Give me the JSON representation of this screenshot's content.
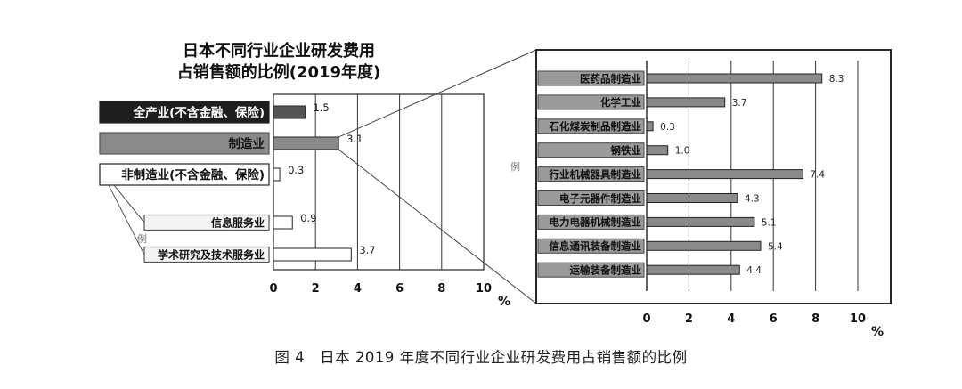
{
  "figure_caption": "图 4　日本 2019 年度不同行业企业研发费用占销售额的比例",
  "legend_mark_left": "例",
  "legend_mark_right": "例",
  "chart_data": [
    {
      "type": "bar",
      "orientation": "horizontal",
      "title": "日本不同行业企业研发费用\n占销售额的比例(2019年度)",
      "categories": [
        "全产业(不含金融、保险)",
        "制造业",
        "非制造业(不含金融、保险)",
        "信息服务业",
        "学术研究及技术服务业"
      ],
      "values": [
        1.5,
        3.1,
        0.3,
        0.9,
        3.7
      ],
      "value_labels": [
        "1.5",
        "3.1",
        "0.3",
        "0.9",
        "3.7"
      ],
      "bar_colors": [
        "#555555",
        "#8a8a8a",
        "#ffffff",
        "#ffffff",
        "#ffffff"
      ],
      "label_styles": [
        "dark",
        "gray",
        "boxed",
        "light",
        "light"
      ],
      "xlim": [
        0,
        10
      ],
      "xticks": [
        "0",
        "2",
        "4",
        "6",
        "8",
        "10"
      ],
      "xlabel": "%",
      "grid": true
    },
    {
      "type": "bar",
      "orientation": "horizontal",
      "title": "",
      "categories": [
        "医药品制造业",
        "化学工业",
        "石化煤炭制品制造业",
        "钢铁业",
        "行业机械器具制造业",
        "电子元器件制造业",
        "电力电器机械制造业",
        "信息通讯装备制造业",
        "运输装备制造业"
      ],
      "values": [
        8.3,
        3.7,
        0.3,
        1.0,
        7.4,
        4.3,
        5.1,
        5.4,
        4.4
      ],
      "value_labels": [
        "8.3",
        "3.7",
        "0.3",
        "1.0",
        "7.4",
        "4.3",
        "5.1",
        "5.4",
        "4.4"
      ],
      "bar_color": "#8a8a8a",
      "xlim": [
        0,
        10
      ],
      "xticks": [
        "0",
        "2",
        "4",
        "6",
        "8",
        "10"
      ],
      "xlabel": "%",
      "grid": true
    }
  ]
}
